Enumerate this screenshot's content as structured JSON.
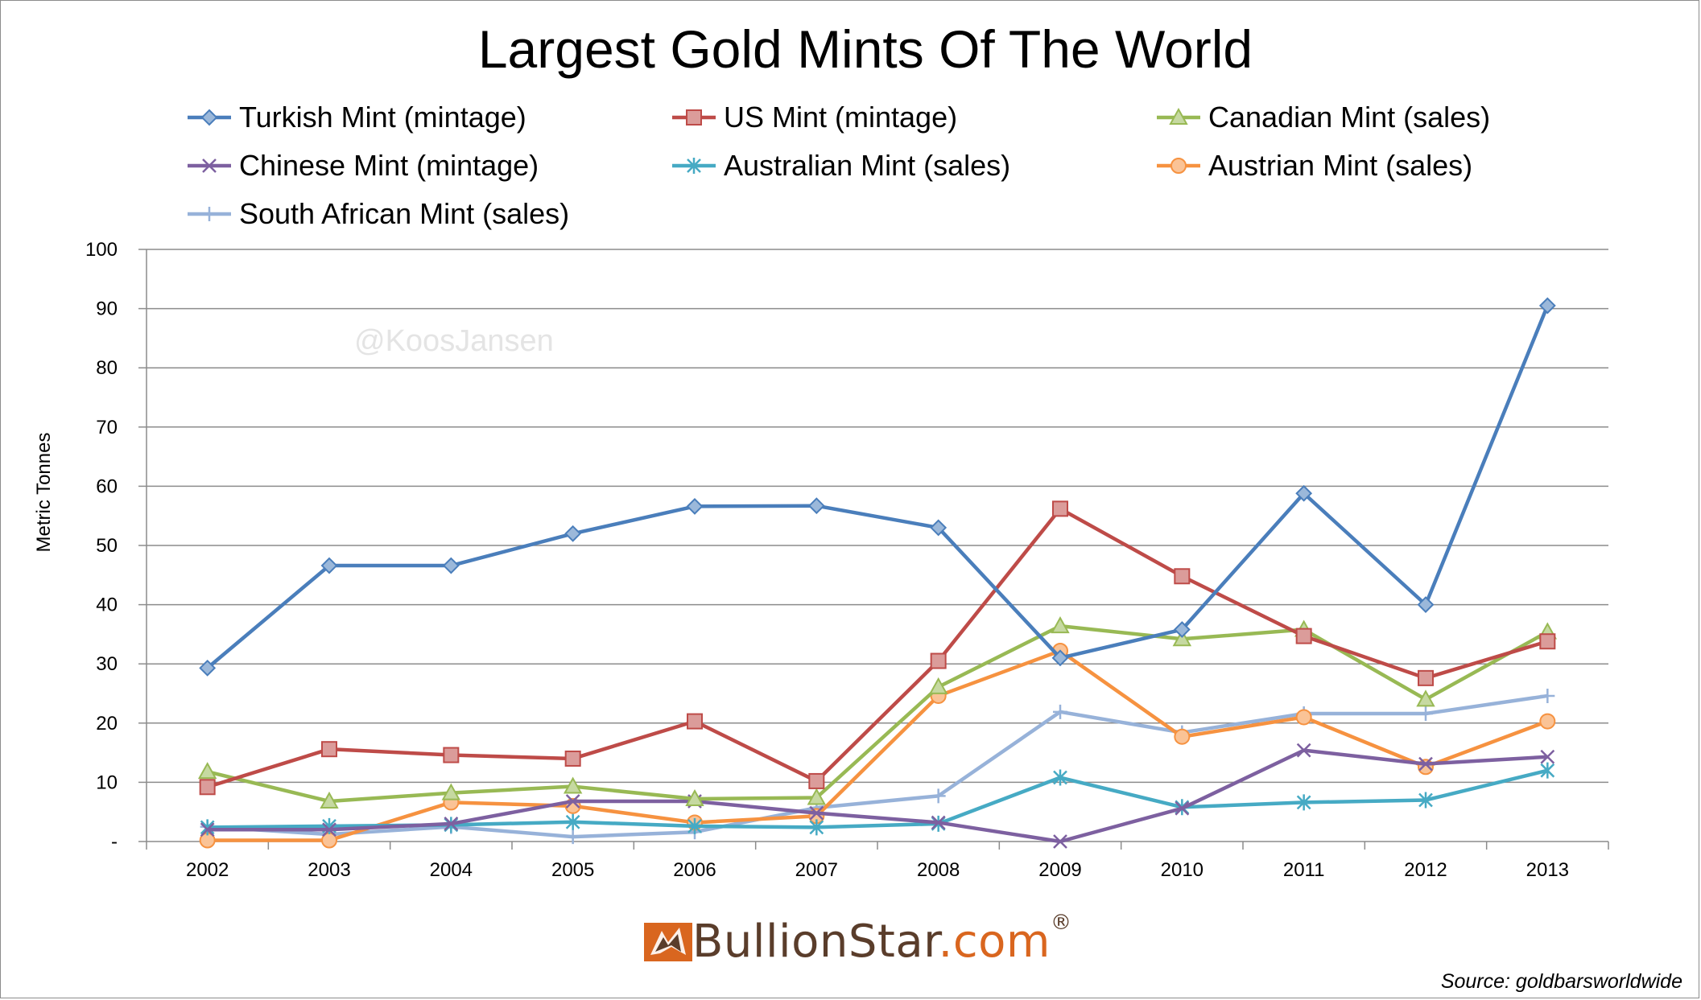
{
  "chart_data": {
    "type": "line",
    "title": "Largest Gold Mints Of The World",
    "ylabel": "Metric Tonnes",
    "xlabel": "",
    "ylim": [
      0,
      100
    ],
    "yticks": [
      0,
      10,
      20,
      30,
      40,
      50,
      60,
      70,
      80,
      90,
      100
    ],
    "ytick_labels": [
      "-",
      "10",
      "20",
      "30",
      "40",
      "50",
      "60",
      "70",
      "80",
      "90",
      "100"
    ],
    "categories": [
      "2002",
      "2003",
      "2004",
      "2005",
      "2006",
      "2007",
      "2008",
      "2009",
      "2010",
      "2011",
      "2012",
      "2013"
    ],
    "grid": "horizontal",
    "legend_position": "top",
    "watermark": "@KoosJansen",
    "source": "Source: goldbarsworldwide",
    "series": [
      {
        "name": "Turkish Mint (mintage)",
        "color": "#4a7ebb",
        "marker": "diamond",
        "values": [
          29.3,
          46.6,
          46.6,
          52.0,
          56.6,
          56.7,
          53.0,
          31.0,
          35.8,
          58.8,
          40.0,
          90.5
        ]
      },
      {
        "name": "US Mint (mintage)",
        "color": "#be4b48",
        "marker": "square",
        "values": [
          9.2,
          15.6,
          14.6,
          14.0,
          20.3,
          10.2,
          30.5,
          56.2,
          44.8,
          34.7,
          27.6,
          33.8
        ]
      },
      {
        "name": "Canadian Mint (sales)",
        "color": "#98b954",
        "marker": "triangle",
        "values": [
          11.8,
          6.8,
          8.2,
          9.3,
          7.2,
          7.4,
          26.1,
          36.4,
          34.2,
          35.8,
          24.0,
          35.4
        ]
      },
      {
        "name": "Chinese Mint (mintage)",
        "color": "#7d60a0",
        "marker": "x",
        "values": [
          2.0,
          2.0,
          3.0,
          6.8,
          6.8,
          4.8,
          3.2,
          0.0,
          5.6,
          15.4,
          13.1,
          14.3
        ]
      },
      {
        "name": "Australian Mint (sales)",
        "color": "#46aac4",
        "marker": "asterisk",
        "values": [
          2.4,
          2.6,
          2.8,
          3.3,
          2.6,
          2.4,
          3.0,
          10.8,
          5.8,
          6.6,
          7.0,
          12.0
        ]
      },
      {
        "name": "Austrian Mint (sales)",
        "color": "#f69240",
        "marker": "circle",
        "values": [
          0.2,
          0.2,
          6.6,
          6.0,
          3.2,
          4.3,
          24.6,
          32.2,
          17.7,
          21.0,
          12.6,
          20.3
        ]
      },
      {
        "name": "South African Mint (sales)",
        "color": "#97b2d9",
        "marker": "plus",
        "values": [
          2.5,
          1.2,
          2.5,
          0.8,
          1.6,
          5.7,
          7.7,
          21.9,
          18.4,
          21.6,
          21.6,
          24.6
        ]
      }
    ]
  },
  "logo": {
    "name": "BullionStar",
    "domain": ".com",
    "mark": "®"
  }
}
